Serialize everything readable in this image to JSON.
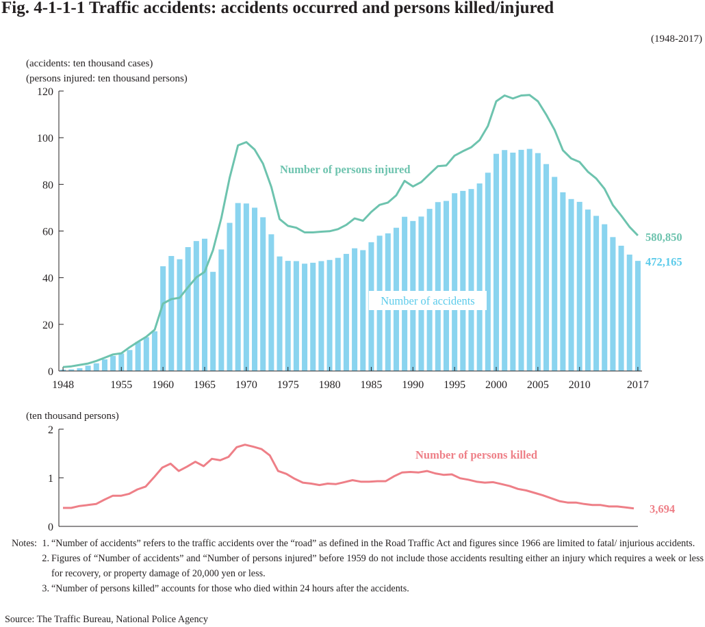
{
  "figure": {
    "title": "Fig. 4-1-1-1    Traffic accidents: accidents occurred and persons killed/injured",
    "period": "(1948-2017)"
  },
  "colors": {
    "bars": "#8ad4ef",
    "injured": "#6dc3ae",
    "accidents_label": "#5ccbea",
    "killed": "#ee7f87",
    "axis": "#231f20"
  },
  "chart_data": [
    {
      "type": "bar",
      "ylabel_lines": [
        "(accidents: ten thousand cases)",
        "(persons injured: ten thousand persons)"
      ],
      "ylim": [
        0,
        120
      ],
      "yticks": [
        0,
        20,
        40,
        60,
        80,
        100,
        120
      ],
      "xtick_labels": [
        "1948",
        "1955",
        "1960",
        "1965",
        "1970",
        "1975",
        "1980",
        "1985",
        "1990",
        "1995",
        "2000",
        "2005",
        "2010",
        "2017"
      ],
      "x": [
        1948,
        1949,
        1950,
        1951,
        1952,
        1953,
        1954,
        1955,
        1956,
        1957,
        1958,
        1959,
        1960,
        1961,
        1962,
        1963,
        1964,
        1965,
        1966,
        1967,
        1968,
        1969,
        1970,
        1971,
        1972,
        1973,
        1974,
        1975,
        1976,
        1977,
        1978,
        1979,
        1980,
        1981,
        1982,
        1983,
        1984,
        1985,
        1986,
        1987,
        1988,
        1989,
        1990,
        1991,
        1992,
        1993,
        1994,
        1995,
        1996,
        1997,
        1998,
        1999,
        2000,
        2001,
        2002,
        2003,
        2004,
        2005,
        2006,
        2007,
        2008,
        2009,
        2010,
        2011,
        2012,
        2013,
        2014,
        2015,
        2016,
        2017
      ],
      "series": [
        {
          "name": "Number of accidents",
          "kind": "bar",
          "values": [
            0.6,
            0.7,
            1.2,
            2.3,
            3.3,
            5.0,
            6.5,
            7.5,
            9.0,
            12.5,
            14.5,
            17.0,
            44.9,
            49.3,
            47.9,
            53.1,
            55.7,
            56.7,
            42.5,
            52.1,
            63.5,
            72.0,
            71.8,
            70.0,
            65.9,
            58.6,
            49.1,
            47.2,
            47.1,
            46.0,
            46.4,
            47.1,
            47.6,
            48.5,
            50.2,
            52.6,
            51.8,
            55.2,
            58.0,
            59.0,
            61.4,
            66.1,
            64.3,
            66.2,
            69.5,
            72.4,
            72.9,
            76.2,
            77.2,
            78.0,
            80.4,
            85.0,
            93.1,
            94.7,
            93.6,
            94.8,
            95.2,
            93.4,
            88.7,
            83.2,
            76.6,
            73.7,
            72.5,
            69.2,
            66.5,
            62.9,
            57.4,
            53.7,
            49.9,
            47.2
          ],
          "label": "Number of accidents",
          "end_label": "472,165"
        },
        {
          "name": "Number of persons injured",
          "kind": "line",
          "values": [
            1.7,
            2.0,
            2.6,
            3.2,
            4.3,
            5.7,
            7.1,
            7.6,
            10.2,
            12.5,
            14.7,
            17.7,
            28.9,
            30.8,
            31.4,
            35.9,
            40.1,
            42.5,
            51.8,
            65.5,
            82.8,
            96.7,
            98.1,
            94.9,
            88.9,
            78.9,
            65.1,
            62.2,
            61.4,
            59.4,
            59.4,
            59.7,
            59.9,
            60.8,
            62.6,
            65.4,
            64.4,
            68.2,
            71.2,
            72.2,
            75.3,
            81.5,
            79.1,
            81.0,
            84.4,
            87.8,
            88.1,
            92.3,
            94.2,
            95.9,
            99.0,
            105.0,
            115.6,
            118.1,
            116.8,
            118.1,
            118.3,
            115.6,
            109.9,
            103.4,
            94.6,
            91.1,
            89.6,
            85.4,
            82.5,
            78.1,
            71.1,
            66.6,
            61.8,
            58.1
          ],
          "label": "Number of persons injured",
          "end_label": "580,850"
        }
      ]
    },
    {
      "type": "line",
      "ylabel": "(ten thousand persons)",
      "ylim": [
        0,
        2
      ],
      "yticks": [
        0,
        1,
        2
      ],
      "x_range": [
        1948,
        2017
      ],
      "series": [
        {
          "name": "Number of persons killed",
          "values": [
            0.38,
            0.38,
            0.42,
            0.44,
            0.46,
            0.55,
            0.63,
            0.63,
            0.67,
            0.76,
            0.82,
            1.01,
            1.21,
            1.29,
            1.14,
            1.23,
            1.33,
            1.24,
            1.39,
            1.36,
            1.43,
            1.63,
            1.68,
            1.64,
            1.59,
            1.46,
            1.14,
            1.08,
            0.98,
            0.9,
            0.88,
            0.85,
            0.88,
            0.87,
            0.91,
            0.95,
            0.92,
            0.92,
            0.93,
            0.93,
            1.03,
            1.11,
            1.12,
            1.11,
            1.14,
            1.09,
            1.06,
            1.07,
            0.99,
            0.96,
            0.92,
            0.9,
            0.91,
            0.87,
            0.83,
            0.77,
            0.74,
            0.69,
            0.64,
            0.58,
            0.52,
            0.49,
            0.49,
            0.46,
            0.44,
            0.44,
            0.41,
            0.41,
            0.39,
            0.37
          ],
          "label": "Number of persons killed",
          "end_label": "3,694"
        }
      ]
    }
  ],
  "notes": {
    "heading": "Notes:",
    "items": [
      {
        "num": "1.",
        "text": "“Number of accidents” refers to the traffic accidents over the “road” as defined in the Road Traffic Act and figures since 1966 are limited to fatal/ injurious accidents."
      },
      {
        "num": "2.",
        "text": "Figures of “Number of accidents” and “Number of persons injured” before 1959 do not include those accidents resulting either an injury which requires a week or less for recovery, or property damage of 20,000 yen or less."
      },
      {
        "num": "3.",
        "text": "“Number of persons killed” accounts for those who died within 24 hours after the accidents."
      }
    ]
  },
  "source": "Source: The Traffic Bureau, National Police Agency"
}
